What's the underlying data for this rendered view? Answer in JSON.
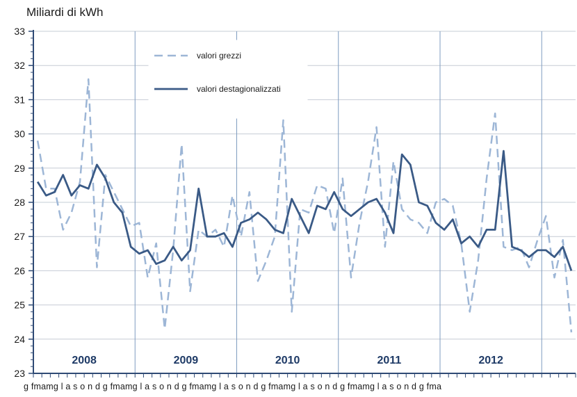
{
  "chart_data": {
    "type": "line",
    "ylabel": "Miliardi di kWh",
    "ylim": [
      23,
      33
    ],
    "yticks": [
      23,
      24,
      25,
      26,
      27,
      28,
      29,
      30,
      31,
      32,
      33
    ],
    "grid": true,
    "legend_position": "top-left",
    "month_letters": [
      "g",
      "f",
      "m",
      "a",
      "m",
      "g",
      "l",
      "a",
      "s",
      "o",
      "n",
      "d"
    ],
    "month_strip_text": "g fmamg l a s o n d g fmamg l a s o n d g fmamg l a s o n d g fmamg l a s o n d g fmamg l a s o n d g fma",
    "year_labels": [
      "2008",
      "2009",
      "2010",
      "2011",
      "2012"
    ],
    "series": [
      {
        "name": "valori grezzi",
        "color": "#9db6d6",
        "dash": true,
        "values": [
          29.8,
          28.4,
          28.4,
          27.2,
          27.7,
          28.6,
          31.6,
          26.1,
          28.8,
          28.3,
          27.8,
          27.3,
          27.4,
          25.8,
          26.8,
          24.3,
          26.6,
          29.7,
          25.4,
          27.2,
          27.0,
          27.2,
          26.7,
          28.2,
          27.0,
          28.3,
          25.7,
          26.3,
          27.0,
          30.4,
          24.8,
          27.8,
          27.7,
          28.5,
          28.4,
          27.1,
          28.7,
          25.8,
          27.4,
          28.6,
          30.2,
          26.7,
          29.2,
          27.8,
          27.5,
          27.4,
          27.1,
          28.0,
          28.1,
          27.9,
          26.8,
          24.8,
          26.3,
          28.7,
          30.6,
          26.7,
          26.6,
          26.7,
          26.1,
          26.9,
          27.6,
          25.8,
          26.9,
          24.2
        ]
      },
      {
        "name": "valori destagionalizzati",
        "color": "#3a5a86",
        "dash": false,
        "values": [
          28.6,
          28.2,
          28.3,
          28.8,
          28.2,
          28.5,
          28.4,
          29.1,
          28.7,
          28.0,
          27.7,
          26.7,
          26.5,
          26.6,
          26.2,
          26.3,
          26.7,
          26.3,
          26.6,
          28.4,
          27.0,
          27.0,
          27.1,
          26.7,
          27.4,
          27.5,
          27.7,
          27.5,
          27.2,
          27.1,
          28.1,
          27.6,
          27.1,
          27.9,
          27.8,
          28.3,
          27.8,
          27.6,
          27.8,
          28.0,
          28.1,
          27.7,
          27.1,
          29.4,
          29.1,
          28.0,
          27.9,
          27.4,
          27.2,
          27.5,
          26.8,
          27.0,
          26.7,
          27.2,
          27.2,
          29.5,
          26.7,
          26.6,
          26.4,
          26.6,
          26.6,
          26.4,
          26.7,
          26.0
        ]
      }
    ]
  }
}
